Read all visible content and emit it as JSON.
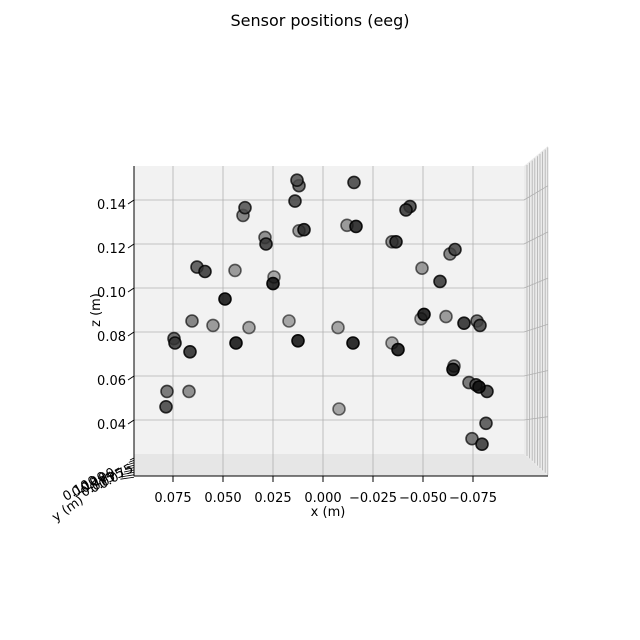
{
  "chart_data": {
    "type": "scatter",
    "title": "Sensor positions (eeg)",
    "xlabel": "x (m)",
    "ylabel": "y (m)",
    "zlabel": "z (m)",
    "xlim": [
      0.09,
      -0.088
    ],
    "zlim": [
      0.03,
      0.153
    ],
    "x_ticks": [
      0.075,
      0.05,
      0.025,
      0.0,
      -0.025,
      -0.05,
      -0.075
    ],
    "x_tick_labels": [
      "0.075",
      "0.050",
      "0.025",
      "0.000",
      "−0.025",
      "−0.050",
      "−0.075"
    ],
    "z_ticks": [
      0.04,
      0.06,
      0.08,
      0.1,
      0.12,
      0.14
    ],
    "z_tick_labels": [
      "0.04",
      "0.06",
      "0.08",
      "0.10",
      "0.12",
      "0.14"
    ],
    "y_tick_labels": [
      "0.100",
      "0.075"
    ],
    "grid": true,
    "view": "3d, viewed from the front",
    "colors": {
      "pane": "#f2f2f2",
      "grid": "#b0b0b0",
      "marker_edge": "#000000"
    },
    "points": [
      {
        "x": 0.013,
        "z": 0.149,
        "shade": 0.3
      },
      {
        "x": 0.012,
        "z": 0.1465,
        "shade": 0.35
      },
      {
        "x": -0.0155,
        "z": 0.148,
        "shade": 0.25
      },
      {
        "x": 0.014,
        "z": 0.1395,
        "shade": 0.25
      },
      {
        "x": 0.039,
        "z": 0.1365,
        "shade": 0.3
      },
      {
        "x": 0.04,
        "z": 0.133,
        "shade": 0.45
      },
      {
        "x": -0.0435,
        "z": 0.137,
        "shade": 0.25
      },
      {
        "x": -0.0415,
        "z": 0.1355,
        "shade": 0.2
      },
      {
        "x": 0.0095,
        "z": 0.1265,
        "shade": 0.15
      },
      {
        "x": 0.012,
        "z": 0.126,
        "shade": 0.55
      },
      {
        "x": -0.012,
        "z": 0.1285,
        "shade": 0.55
      },
      {
        "x": -0.0165,
        "z": 0.128,
        "shade": 0.1
      },
      {
        "x": 0.029,
        "z": 0.123,
        "shade": 0.5
      },
      {
        "x": 0.0285,
        "z": 0.12,
        "shade": 0.2
      },
      {
        "x": -0.0345,
        "z": 0.121,
        "shade": 0.5
      },
      {
        "x": -0.0365,
        "z": 0.121,
        "shade": 0.15
      },
      {
        "x": -0.066,
        "z": 0.1175,
        "shade": 0.25
      },
      {
        "x": -0.0635,
        "z": 0.1155,
        "shade": 0.45
      },
      {
        "x": 0.063,
        "z": 0.1095,
        "shade": 0.3
      },
      {
        "x": 0.059,
        "z": 0.1075,
        "shade": 0.2
      },
      {
        "x": 0.044,
        "z": 0.108,
        "shade": 0.55
      },
      {
        "x": 0.0245,
        "z": 0.105,
        "shade": 0.6
      },
      {
        "x": 0.025,
        "z": 0.102,
        "shade": 0.05
      },
      {
        "x": -0.0495,
        "z": 0.109,
        "shade": 0.55
      },
      {
        "x": -0.0585,
        "z": 0.103,
        "shade": 0.2
      },
      {
        "x": 0.049,
        "z": 0.095,
        "shade": 0.05
      },
      {
        "x": 0.0655,
        "z": 0.085,
        "shade": 0.45
      },
      {
        "x": 0.055,
        "z": 0.083,
        "shade": 0.55
      },
      {
        "x": 0.037,
        "z": 0.082,
        "shade": 0.6
      },
      {
        "x": 0.017,
        "z": 0.085,
        "shade": 0.6
      },
      {
        "x": -0.0075,
        "z": 0.082,
        "shade": 0.6
      },
      {
        "x": -0.049,
        "z": 0.086,
        "shade": 0.6
      },
      {
        "x": -0.0505,
        "z": 0.088,
        "shade": 0.05
      },
      {
        "x": -0.0615,
        "z": 0.087,
        "shade": 0.55
      },
      {
        "x": -0.0705,
        "z": 0.084,
        "shade": 0.15
      },
      {
        "x": -0.077,
        "z": 0.085,
        "shade": 0.4
      },
      {
        "x": -0.0785,
        "z": 0.083,
        "shade": 0.25
      },
      {
        "x": 0.0745,
        "z": 0.077,
        "shade": 0.35
      },
      {
        "x": 0.074,
        "z": 0.075,
        "shade": 0.2
      },
      {
        "x": 0.0665,
        "z": 0.071,
        "shade": 0.15
      },
      {
        "x": 0.0435,
        "z": 0.075,
        "shade": 0.05
      },
      {
        "x": 0.0125,
        "z": 0.076,
        "shade": 0.05
      },
      {
        "x": -0.015,
        "z": 0.075,
        "shade": 0.05
      },
      {
        "x": -0.0345,
        "z": 0.075,
        "shade": 0.6
      },
      {
        "x": -0.0375,
        "z": 0.072,
        "shade": 0.05
      },
      {
        "x": -0.0655,
        "z": 0.0645,
        "shade": 0.5
      },
      {
        "x": -0.065,
        "z": 0.063,
        "shade": 0.05
      },
      {
        "x": -0.073,
        "z": 0.057,
        "shade": 0.4
      },
      {
        "x": -0.0765,
        "z": 0.056,
        "shade": 0.25
      },
      {
        "x": -0.078,
        "z": 0.055,
        "shade": 0.05
      },
      {
        "x": -0.082,
        "z": 0.053,
        "shade": 0.2
      },
      {
        "x": 0.078,
        "z": 0.053,
        "shade": 0.4
      },
      {
        "x": 0.067,
        "z": 0.053,
        "shade": 0.5
      },
      {
        "x": 0.0785,
        "z": 0.046,
        "shade": 0.25
      },
      {
        "x": -0.008,
        "z": 0.045,
        "shade": 0.6
      },
      {
        "x": -0.0815,
        "z": 0.0385,
        "shade": 0.3
      },
      {
        "x": -0.0745,
        "z": 0.0315,
        "shade": 0.4
      },
      {
        "x": -0.0795,
        "z": 0.029,
        "shade": 0.2
      }
    ]
  }
}
